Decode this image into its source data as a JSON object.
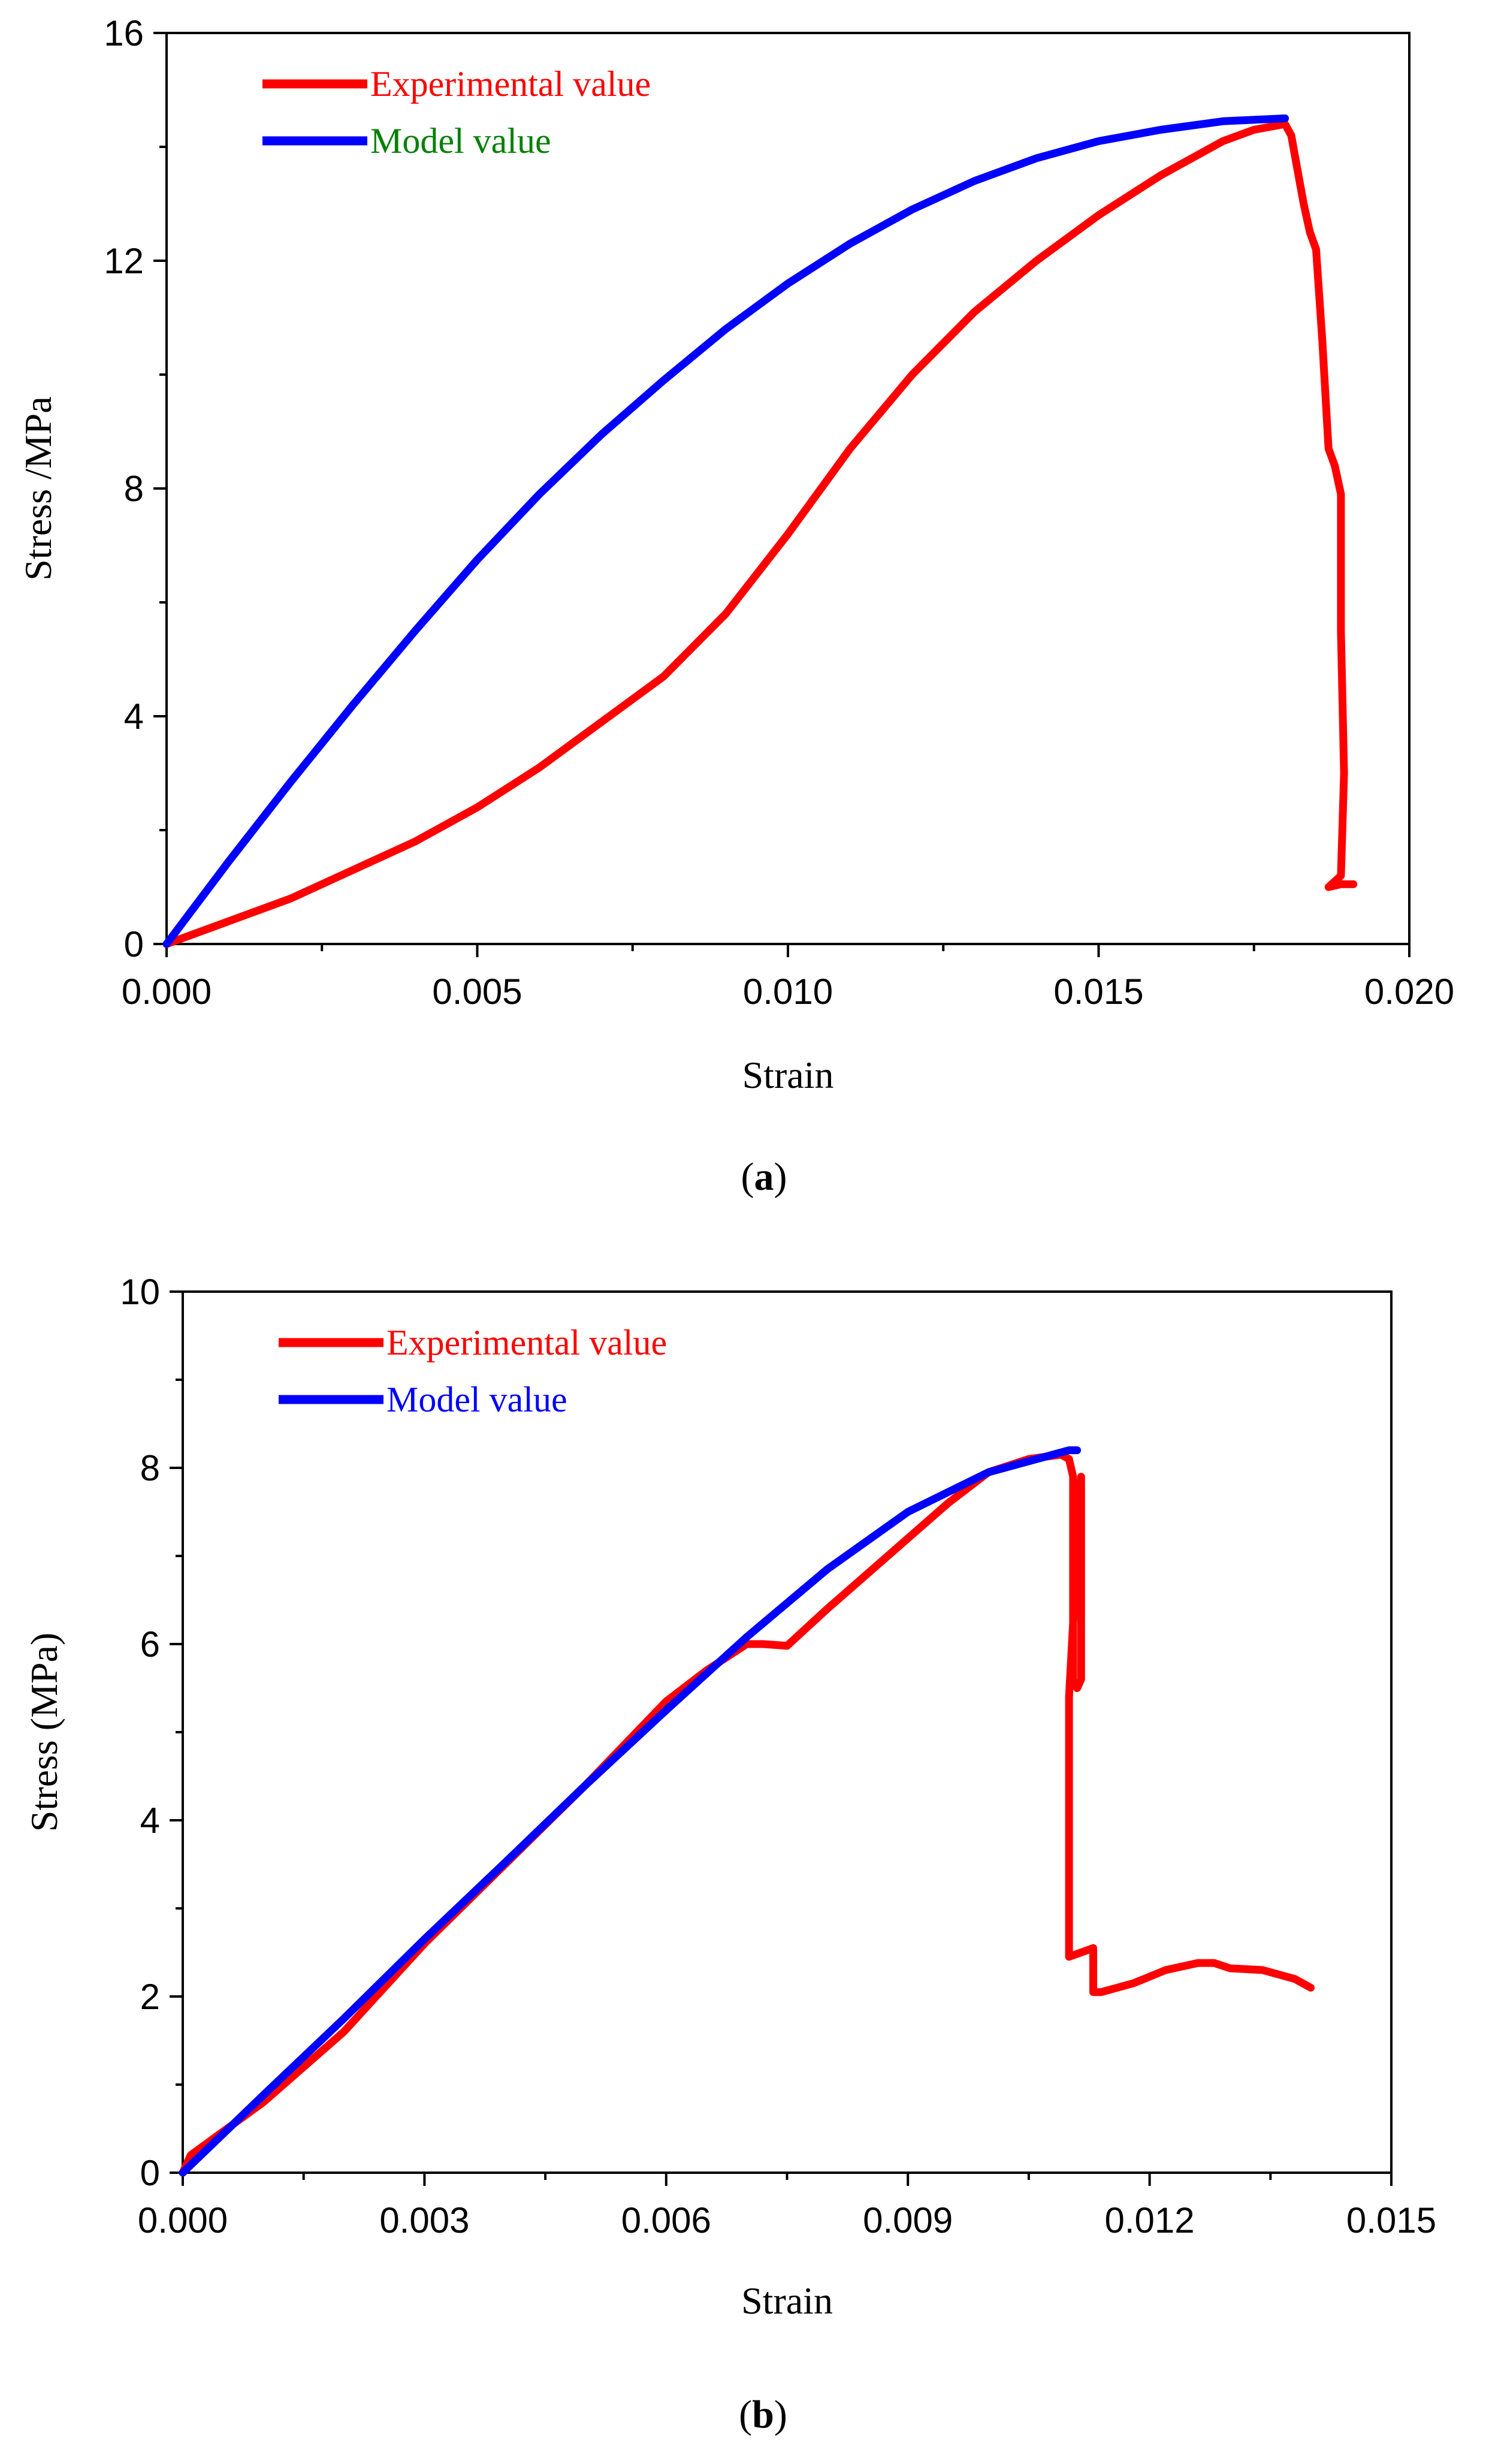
{
  "chart_data": [
    {
      "type": "line",
      "panel": "a",
      "caption": "(a)",
      "caption_bold": "a",
      "xlabel": "Strain",
      "ylabel": "Stress /MPa",
      "xlim": [
        0,
        0.02
      ],
      "ylim": [
        0,
        16
      ],
      "xticks": [
        0.0,
        0.005,
        0.01,
        0.015,
        0.02
      ],
      "xtick_labels": [
        "0.000",
        "0.005",
        "0.010",
        "0.015",
        "0.020"
      ],
      "yticks": [
        0,
        4,
        8,
        12,
        16
      ],
      "ytick_labels": [
        "0",
        "4",
        "8",
        "12",
        "16"
      ],
      "grid": false,
      "legend_position": "top-left",
      "series": [
        {
          "name": "Experimental value",
          "color": "#ff0000",
          "legend_text_color": "#ff0000",
          "x": [
            0,
            0.001,
            0.002,
            0.003,
            0.004,
            0.005,
            0.006,
            0.007,
            0.008,
            0.009,
            0.01,
            0.011,
            0.012,
            0.013,
            0.014,
            0.015,
            0.016,
            0.017,
            0.0175,
            0.018,
            0.0181,
            0.0182,
            0.0183,
            0.0184,
            0.0185,
            0.0186,
            0.0187,
            0.0188,
            0.0189,
            0.0189,
            0.01895,
            0.0189,
            0.0188,
            0.0187,
            0.0189,
            0.0191
          ],
          "y": [
            0,
            0.4,
            0.8,
            1.3,
            1.8,
            2.4,
            3.1,
            3.9,
            4.7,
            5.8,
            7.2,
            8.7,
            10.0,
            11.1,
            12.0,
            12.8,
            13.5,
            14.1,
            14.3,
            14.4,
            14.2,
            13.6,
            13.0,
            12.5,
            12.2,
            10.6,
            8.7,
            8.4,
            7.9,
            5.5,
            3.0,
            1.2,
            1.1,
            1.0,
            1.05,
            1.05
          ]
        },
        {
          "name": "Model value",
          "color": "#0000ff",
          "legend_text_color": "#008000",
          "x": [
            0,
            0.001,
            0.002,
            0.003,
            0.004,
            0.005,
            0.006,
            0.007,
            0.008,
            0.009,
            0.01,
            0.011,
            0.012,
            0.013,
            0.014,
            0.015,
            0.016,
            0.017,
            0.018
          ],
          "y": [
            0,
            1.45,
            2.85,
            4.2,
            5.5,
            6.75,
            7.9,
            8.95,
            9.9,
            10.8,
            11.6,
            12.3,
            12.9,
            13.4,
            13.8,
            14.1,
            14.3,
            14.45,
            14.5
          ]
        }
      ]
    },
    {
      "type": "line",
      "panel": "b",
      "caption": "(b)",
      "caption_bold": "b",
      "xlabel": "Strain",
      "ylabel": "Stress (MPa)",
      "xlim": [
        0,
        0.015
      ],
      "ylim": [
        0,
        10
      ],
      "xticks": [
        0.0,
        0.003,
        0.006,
        0.009,
        0.012,
        0.015
      ],
      "xtick_labels": [
        "0.000",
        "0.003",
        "0.006",
        "0.009",
        "0.012",
        "0.015"
      ],
      "yticks": [
        0,
        2,
        4,
        6,
        8,
        10
      ],
      "ytick_labels": [
        "0",
        "2",
        "4",
        "6",
        "8",
        "10"
      ],
      "grid": false,
      "legend_position": "top-left",
      "series": [
        {
          "name": "Experimental value",
          "color": "#ff0000",
          "legend_text_color": "#ff0000",
          "x": [
            0,
            0.0001,
            0.001,
            0.002,
            0.003,
            0.004,
            0.005,
            0.006,
            0.0065,
            0.007,
            0.0072,
            0.0075,
            0.008,
            0.0085,
            0.009,
            0.0095,
            0.01,
            0.0105,
            0.0109,
            0.011,
            0.01105,
            0.01105,
            0.0111,
            0.0111,
            0.01115,
            0.01115,
            0.011,
            0.011,
            0.0113,
            0.0113,
            0.0114,
            0.0118,
            0.0122,
            0.0126,
            0.0128,
            0.013,
            0.0134,
            0.0138,
            0.014
          ],
          "y": [
            0,
            0.2,
            0.8,
            1.6,
            2.6,
            3.5,
            4.4,
            5.35,
            5.7,
            6.0,
            6.0,
            5.98,
            6.4,
            6.8,
            7.2,
            7.6,
            7.95,
            8.1,
            8.15,
            8.1,
            7.9,
            5.6,
            5.5,
            5.5,
            5.6,
            7.9,
            5.4,
            2.45,
            2.55,
            2.05,
            2.05,
            2.15,
            2.3,
            2.38,
            2.38,
            2.32,
            2.3,
            2.2,
            2.1
          ]
        },
        {
          "name": "Model value",
          "color": "#0000ff",
          "legend_text_color": "#0000ff",
          "x": [
            0,
            0.001,
            0.002,
            0.003,
            0.004,
            0.005,
            0.006,
            0.007,
            0.008,
            0.009,
            0.01,
            0.011,
            0.0111
          ],
          "y": [
            0,
            0.88,
            1.75,
            2.65,
            3.52,
            4.4,
            5.25,
            6.08,
            6.85,
            7.5,
            7.95,
            8.2,
            8.2
          ]
        }
      ]
    }
  ]
}
